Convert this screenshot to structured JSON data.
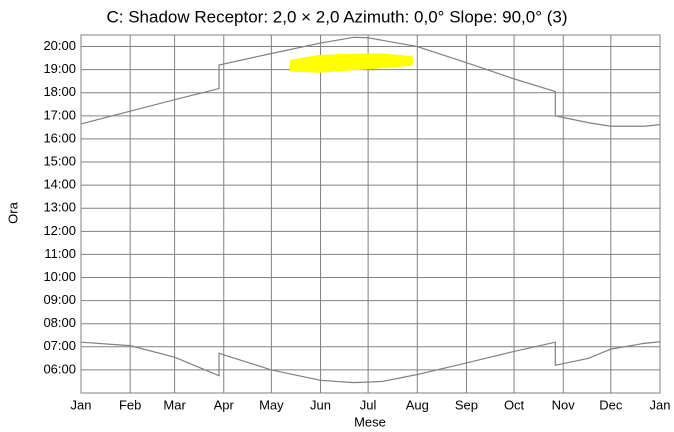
{
  "chart_data": {
    "type": "line",
    "title": "C: Shadow Receptor: 2,0 × 2,0  Azimuth: 0,0°  Slope: 90,0° (3)",
    "x_label": "Mese",
    "y_label": "Ora",
    "xlim": [
      0,
      365
    ],
    "xticks": [
      {
        "value": 0,
        "label": "Jan"
      },
      {
        "value": 31,
        "label": "Feb"
      },
      {
        "value": 59,
        "label": "Mar"
      },
      {
        "value": 90,
        "label": "Apr"
      },
      {
        "value": 120,
        "label": "May"
      },
      {
        "value": 151,
        "label": "Jun"
      },
      {
        "value": 181,
        "label": "Jul"
      },
      {
        "value": 212,
        "label": "Aug"
      },
      {
        "value": 243,
        "label": "Sep"
      },
      {
        "value": 273,
        "label": "Oct"
      },
      {
        "value": 304,
        "label": "Nov"
      },
      {
        "value": 334,
        "label": "Dec"
      },
      {
        "value": 365,
        "label": "Jan"
      }
    ],
    "ylim": [
      5,
      20.5
    ],
    "yticks": [
      {
        "value": 6,
        "label": "06:00"
      },
      {
        "value": 7,
        "label": "07:00"
      },
      {
        "value": 8,
        "label": "08:00"
      },
      {
        "value": 9,
        "label": "09:00"
      },
      {
        "value": 10,
        "label": "10:00"
      },
      {
        "value": 11,
        "label": "11:00"
      },
      {
        "value": 12,
        "label": "12:00"
      },
      {
        "value": 13,
        "label": "13:00"
      },
      {
        "value": 14,
        "label": "14:00"
      },
      {
        "value": 15,
        "label": "15:00"
      },
      {
        "value": 16,
        "label": "16:00"
      },
      {
        "value": 17,
        "label": "17:00"
      },
      {
        "value": 18,
        "label": "18:00"
      },
      {
        "value": 19,
        "label": "19:00"
      },
      {
        "value": 20,
        "label": "20:00"
      }
    ],
    "grid": true,
    "series": [
      {
        "color": "#808080",
        "x": [
          0,
          31,
          59,
          87,
          87,
          120,
          151,
          172,
          181,
          212,
          243,
          273,
          299,
          299,
          320,
          334,
          355,
          365
        ],
        "values": [
          16.65,
          17.2,
          17.7,
          18.18,
          19.2,
          19.7,
          20.15,
          20.4,
          20.38,
          20.0,
          19.3,
          18.6,
          18.05,
          17.0,
          16.7,
          16.55,
          16.55,
          16.62
        ]
      },
      {
        "color": "#808080",
        "x": [
          0,
          31,
          59,
          87,
          87,
          120,
          151,
          172,
          190,
          212,
          243,
          273,
          299,
          299,
          320,
          334,
          355,
          365
        ],
        "values": [
          7.2,
          7.05,
          6.55,
          5.75,
          6.72,
          6.0,
          5.55,
          5.45,
          5.5,
          5.8,
          6.3,
          6.8,
          7.2,
          6.2,
          6.5,
          6.9,
          7.15,
          7.22
        ]
      }
    ],
    "band": {
      "color": "#ffff00",
      "x": [
        133,
        150,
        170,
        190,
        208
      ],
      "high": [
        19.35,
        19.55,
        19.6,
        19.62,
        19.5
      ],
      "low": [
        19.0,
        18.95,
        19.05,
        19.15,
        19.25
      ]
    }
  }
}
